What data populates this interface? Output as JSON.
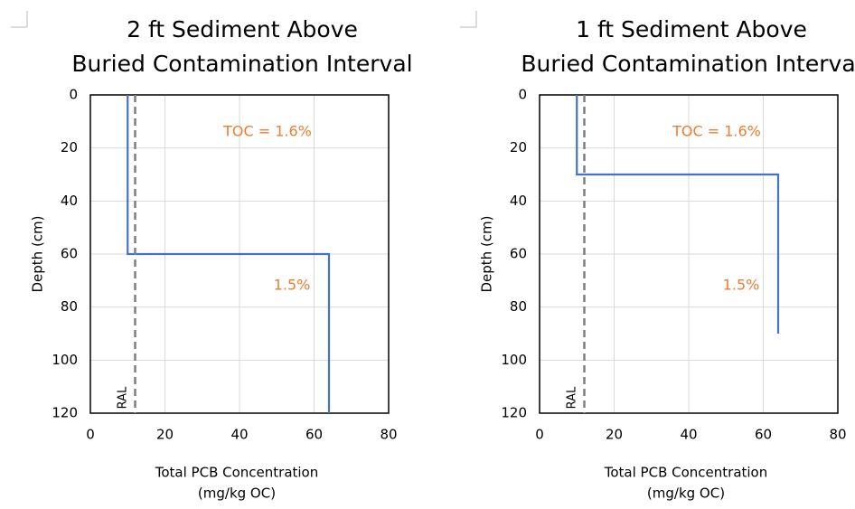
{
  "chart_data": [
    {
      "type": "line",
      "title": [
        "2 ft Sediment Above",
        "Buried Contamination Interval"
      ],
      "x_label": [
        "Total PCB Concentration",
        "(mg/kg OC)"
      ],
      "y_label": "Depth (cm)",
      "xlim": [
        0,
        80
      ],
      "xticks": [
        0,
        20,
        40,
        60,
        80
      ],
      "ylim": [
        0,
        120
      ],
      "yticks": [
        0,
        20,
        40,
        60,
        80,
        100,
        120
      ],
      "y_inverted": true,
      "grid": true,
      "series": [
        {
          "x": [
            10,
            10,
            64,
            64
          ],
          "values": [
            0,
            60,
            60,
            120
          ],
          "color": "#4472c4",
          "dashed": false
        },
        {
          "x": [
            12,
            12
          ],
          "values": [
            0,
            120
          ],
          "color": "#7f7f7f",
          "dashed": true
        }
      ],
      "annotations": [
        "TOC = 1.6%",
        "1.5%",
        "RAL"
      ]
    },
    {
      "type": "line",
      "title": [
        "1 ft Sediment Above",
        "Buried Contamination Interval"
      ],
      "x_label": [
        "Total PCB Concentration",
        "(mg/kg OC)"
      ],
      "y_label": "Depth (cm)",
      "xlim": [
        0,
        80
      ],
      "xticks": [
        0,
        20,
        40,
        60,
        80
      ],
      "ylim": [
        0,
        120
      ],
      "yticks": [
        0,
        20,
        40,
        60,
        80,
        100,
        120
      ],
      "y_inverted": true,
      "grid": true,
      "series": [
        {
          "x": [
            10,
            10,
            64,
            64
          ],
          "values": [
            0,
            30,
            30,
            90
          ],
          "color": "#4472c4",
          "dashed": false
        },
        {
          "x": [
            12,
            12
          ],
          "values": [
            0,
            120
          ],
          "color": "#7f7f7f",
          "dashed": true
        }
      ],
      "annotations": [
        "TOC = 1.6%",
        "1.5%",
        "RAL"
      ]
    }
  ]
}
